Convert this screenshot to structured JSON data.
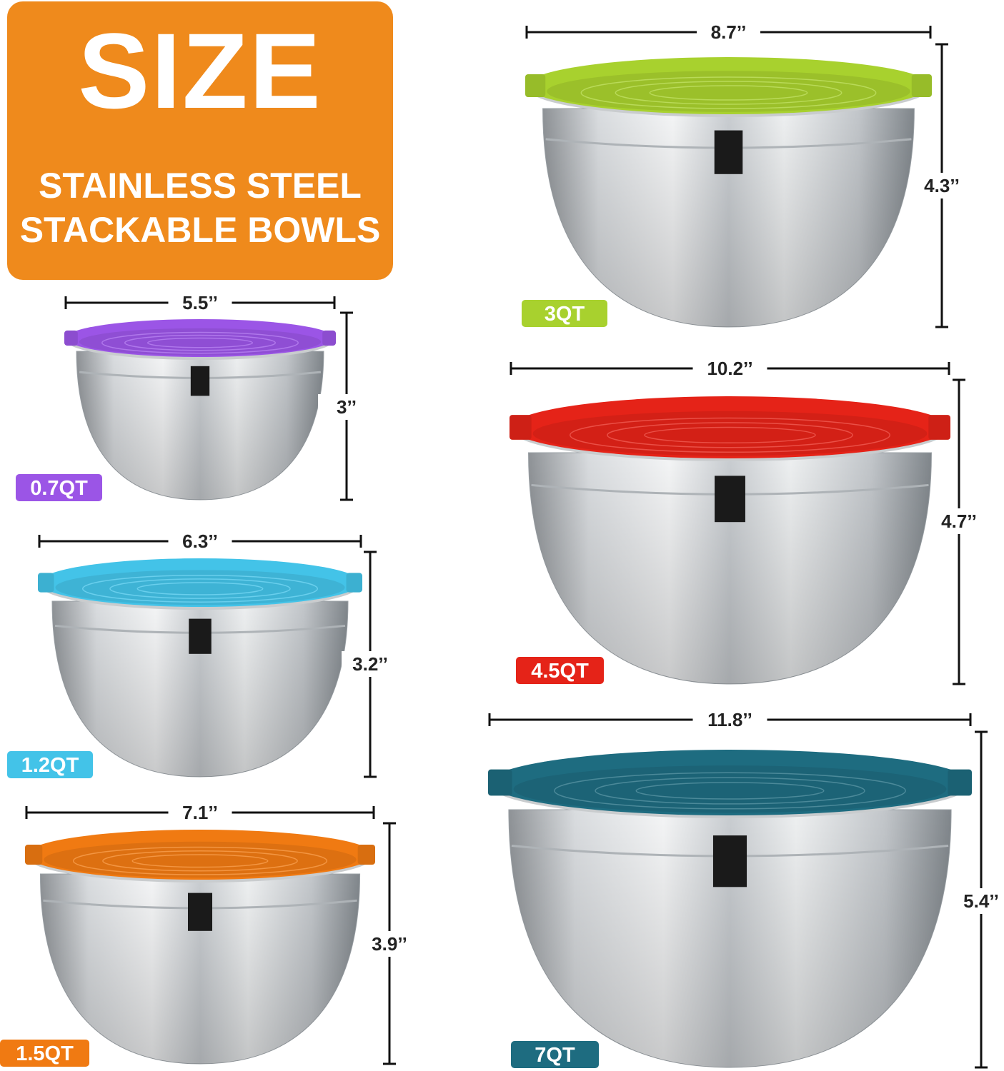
{
  "header": {
    "title": "SIZE",
    "subtitle_line1": "STAINLESS STEEL",
    "subtitle_line2": "STACKABLE BOWLS",
    "accent_color": "#ef8a1c"
  },
  "bowls": [
    {
      "capacity": "0.7QT",
      "diameter": "5.5’’",
      "height": "3’’",
      "lid_color": "#9b55e6"
    },
    {
      "capacity": "1.2QT",
      "diameter": "6.3’’",
      "height": "3.2’’",
      "lid_color": "#43c3e8"
    },
    {
      "capacity": "1.5QT",
      "diameter": "7.1’’",
      "height": "3.9’’",
      "lid_color": "#f07a12"
    },
    {
      "capacity": "3QT",
      "diameter": "8.7’’",
      "height": "4.3’’",
      "lid_color": "#a8d12e"
    },
    {
      "capacity": "4.5QT",
      "diameter": "10.2’’",
      "height": "4.7’’",
      "lid_color": "#e52318"
    },
    {
      "capacity": "7QT",
      "diameter": "11.8’’",
      "height": "5.4’’",
      "lid_color": "#1e6c80"
    }
  ]
}
